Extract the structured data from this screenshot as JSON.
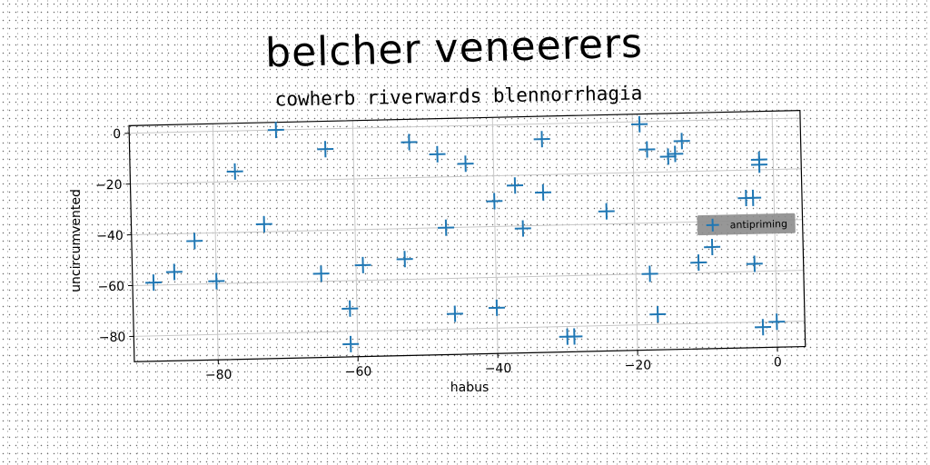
{
  "chart_data": {
    "type": "scatter",
    "title": "belcher veneerers",
    "subtitle": "cowherb riverwards blennorrhagia",
    "xlabel": "habus",
    "ylabel": "uncircumvented",
    "xlim": [
      -92,
      4
    ],
    "ylim": [
      -90,
      3
    ],
    "xticks": [
      -80,
      -60,
      -40,
      -20,
      0
    ],
    "yticks": [
      0,
      -20,
      -40,
      -60,
      -80
    ],
    "grid": true,
    "legend_position": "right",
    "marker": "plus",
    "series": [
      {
        "name": "antipriming",
        "color": "#1f77b4",
        "points": [
          [
            -71,
            0
          ],
          [
            -64,
            -8
          ],
          [
            -52,
            -6
          ],
          [
            -48,
            -11
          ],
          [
            -44,
            -15
          ],
          [
            -33,
            -6
          ],
          [
            -19,
            -1
          ],
          [
            -18,
            -11
          ],
          [
            -15,
            -14
          ],
          [
            -14,
            -13
          ],
          [
            -13,
            -8
          ],
          [
            -77,
            -16
          ],
          [
            -37,
            -24
          ],
          [
            -33,
            -27
          ],
          [
            -40,
            -30
          ],
          [
            -24,
            -35
          ],
          [
            -4,
            -31
          ],
          [
            -3,
            -31
          ],
          [
            -2,
            -16
          ],
          [
            -2,
            -18
          ],
          [
            -73,
            -37
          ],
          [
            -47,
            -40
          ],
          [
            -36,
            -41
          ],
          [
            -83,
            -43
          ],
          [
            -89,
            -59
          ],
          [
            -86,
            -55
          ],
          [
            -80,
            -59
          ],
          [
            -65,
            -57
          ],
          [
            -59,
            -54
          ],
          [
            -53,
            -52
          ],
          [
            -61,
            -71
          ],
          [
            -46,
            -74
          ],
          [
            -40,
            -72
          ],
          [
            -18,
            -60
          ],
          [
            -11,
            -56
          ],
          [
            -9,
            -50
          ],
          [
            -3,
            -57
          ],
          [
            -61,
            -85
          ],
          [
            -30,
            -84
          ],
          [
            -29,
            -84
          ],
          [
            -17,
            -76
          ],
          [
            -2,
            -82
          ],
          [
            0,
            -80
          ]
        ]
      }
    ]
  }
}
